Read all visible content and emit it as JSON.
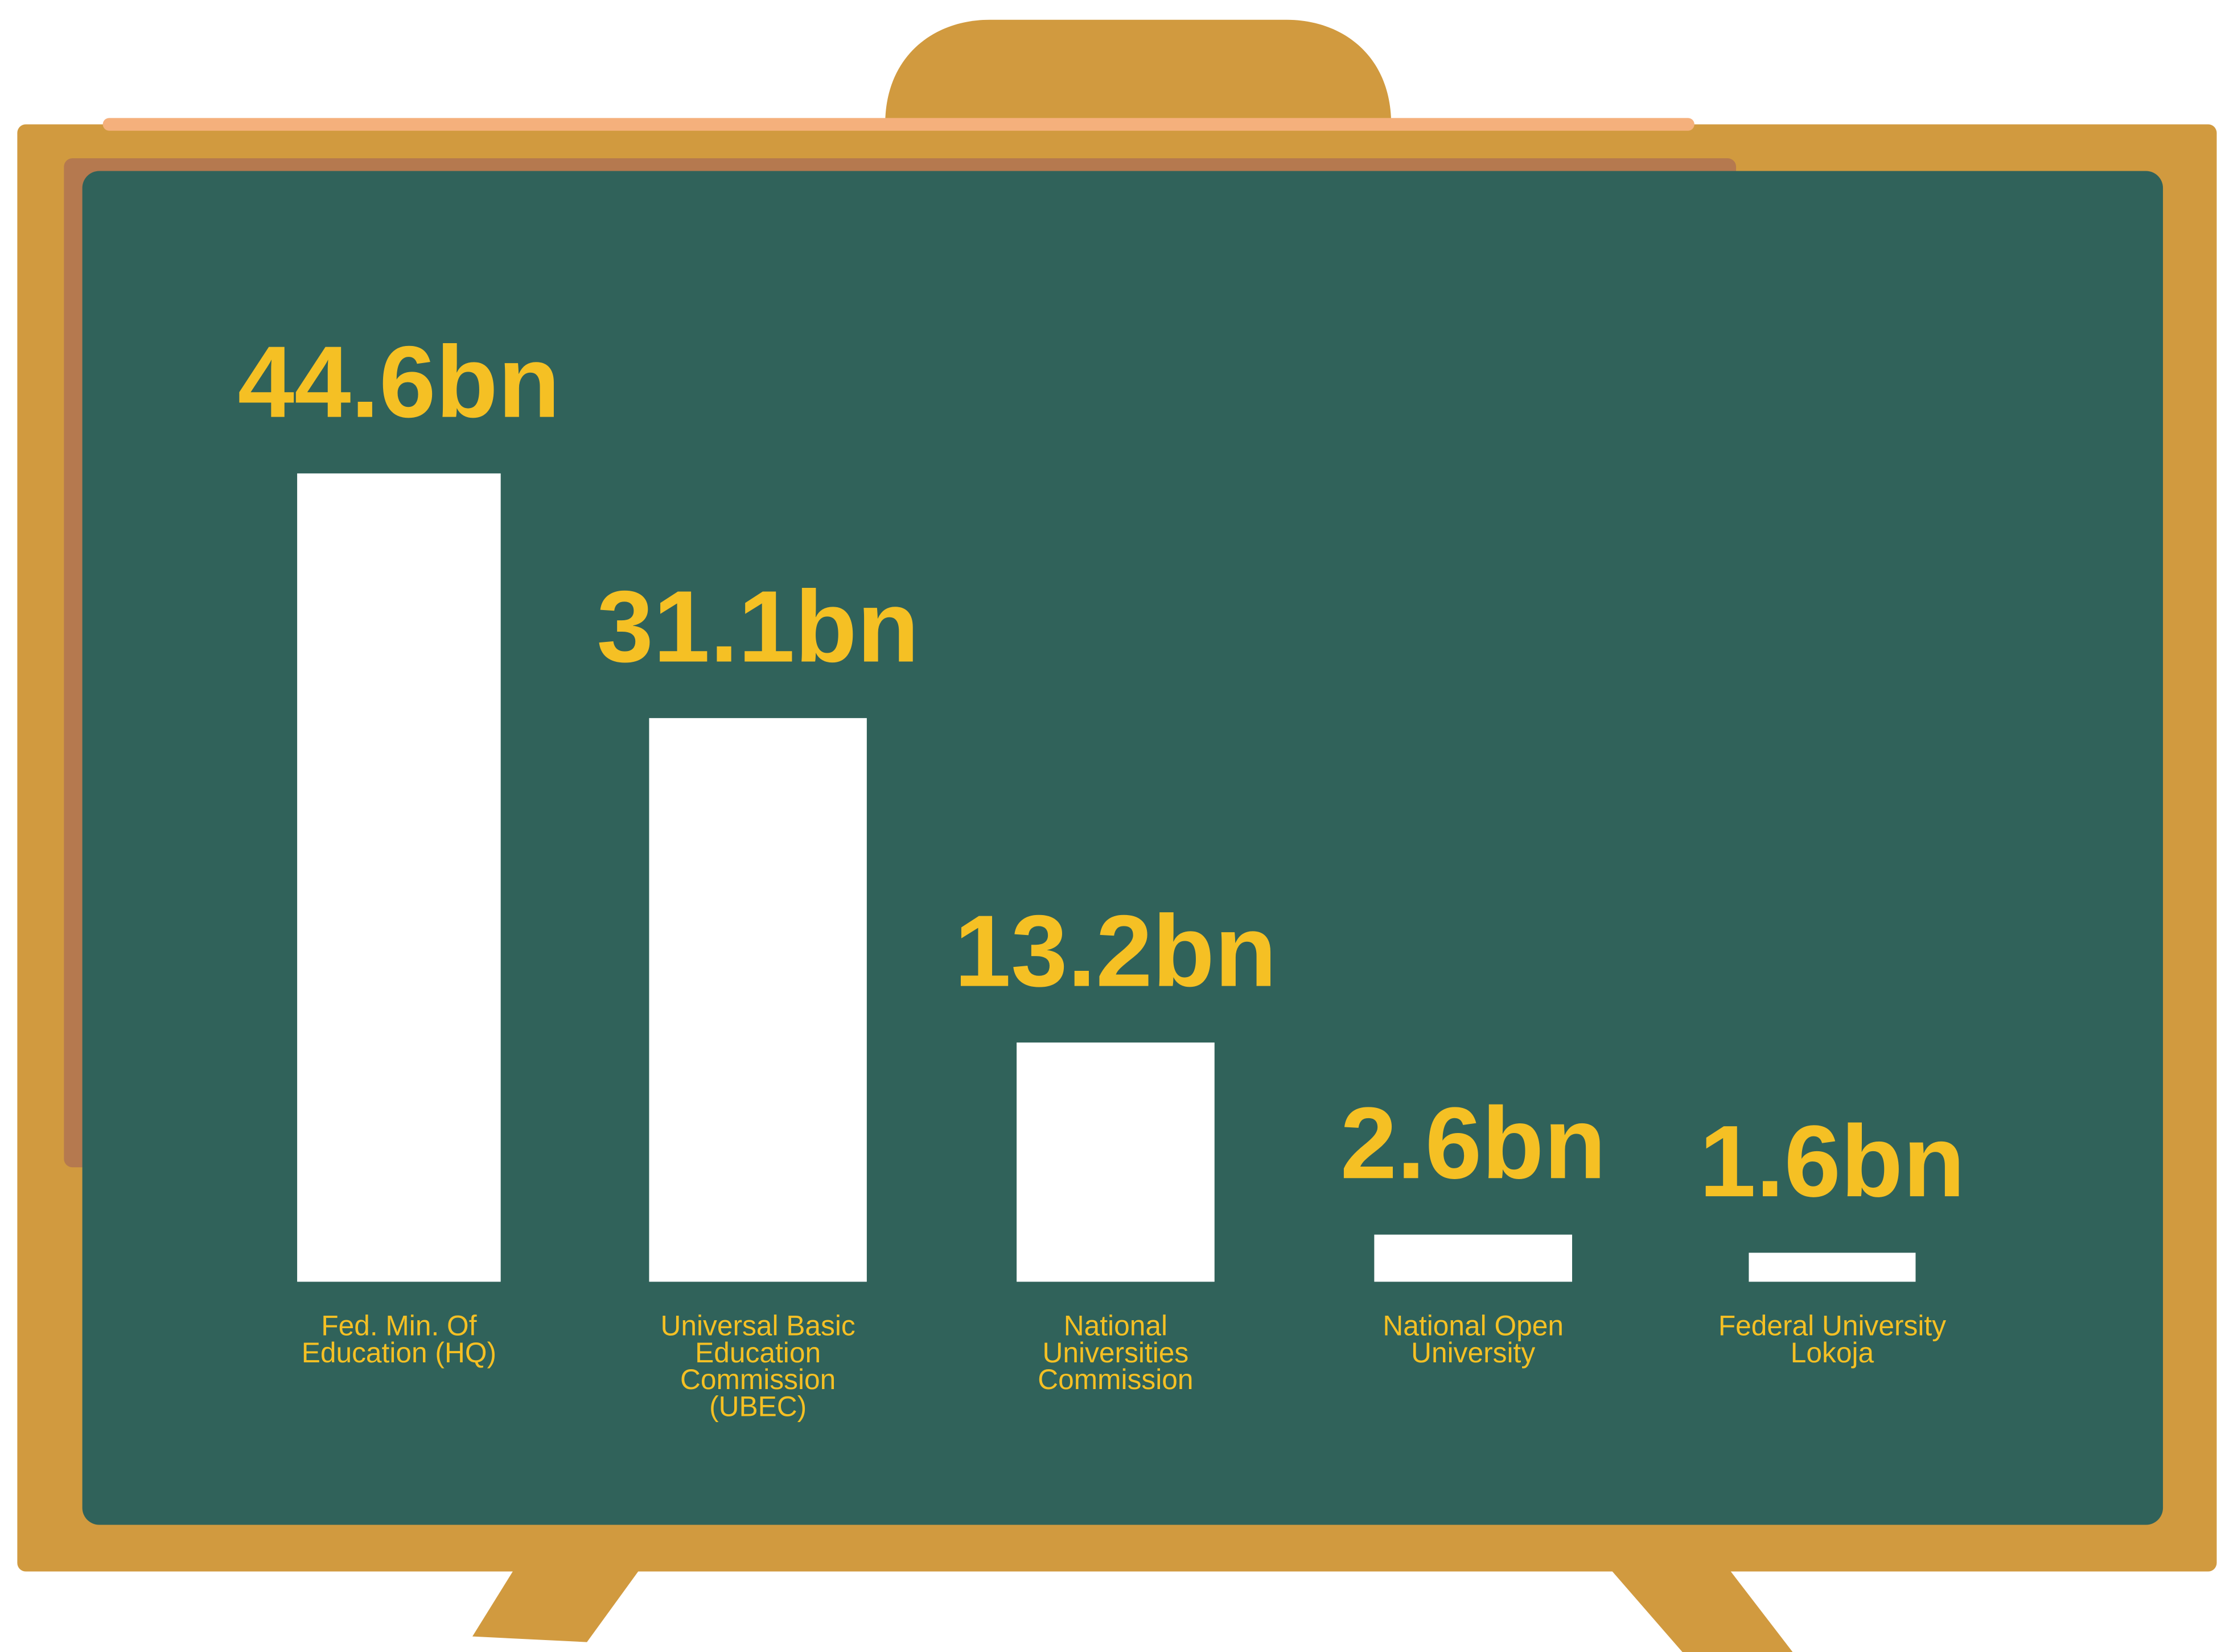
{
  "chart_data": {
    "type": "bar",
    "categories": [
      "Fed. Min. Of Education (HQ)",
      "Universal Basic Education Commission (UBEC)",
      "National Universities Commission",
      "National Open University",
      "Federal University Lokoja"
    ],
    "values": [
      44.6,
      31.1,
      13.2,
      2.6,
      1.6
    ],
    "value_labels": [
      "44.6bn",
      "31.1bn",
      "13.2bn",
      "2.6bn",
      "1.6bn"
    ],
    "color": "#ffffff"
  }
}
